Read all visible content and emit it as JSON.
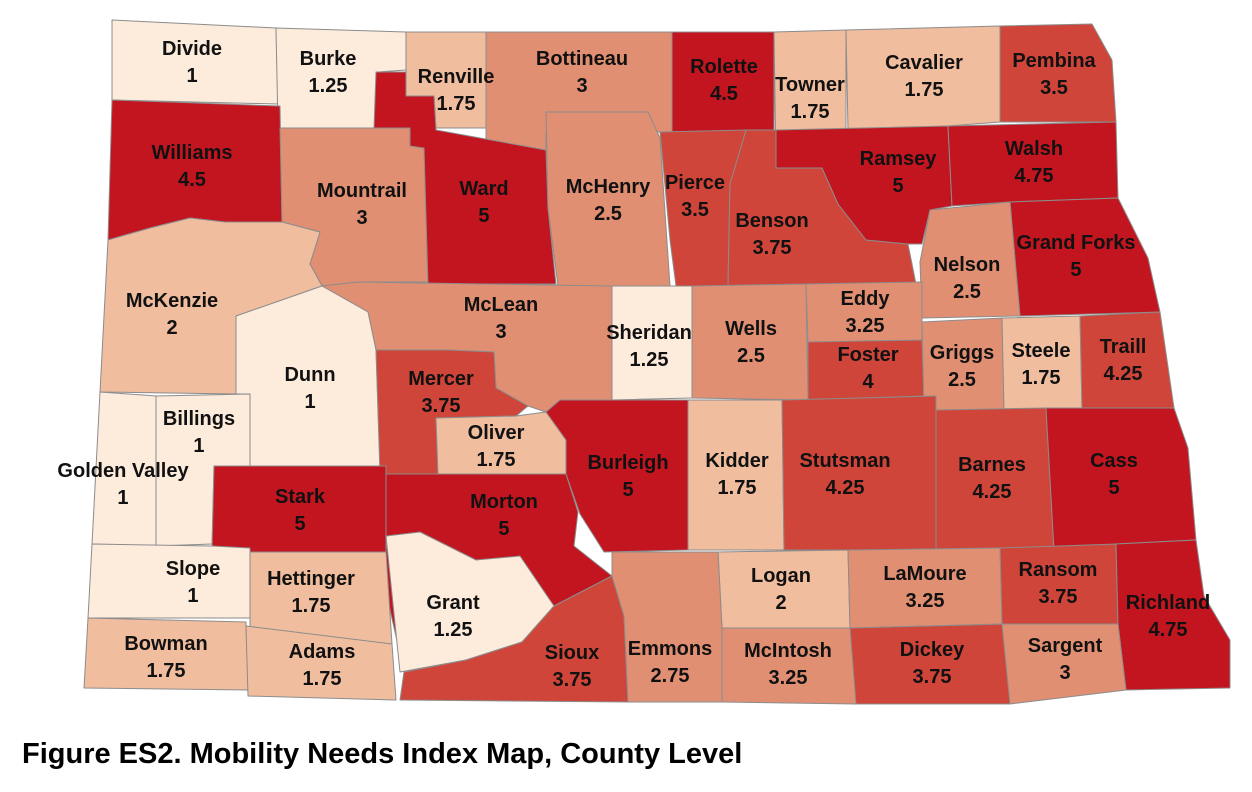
{
  "caption": "Figure ES2. Mobility Needs Index Map, County Level",
  "color_scale": {
    "1": "#fdebdc",
    "1.25": "#fdebdc",
    "1.75": "#f0bd9e",
    "2": "#f0bd9e",
    "2.25": "#e18f72",
    "2.5": "#e18f72",
    "2.75": "#e18f72",
    "3": "#e18f72",
    "3.25": "#e18f72",
    "3.5": "#cf4539",
    "3.75": "#cf4539",
    "4": "#cf4539",
    "4.25": "#cf4539",
    "4.5": "#c21520",
    "4.75": "#c21520",
    "5": "#c21520"
  },
  "counties": [
    {
      "id": "divide",
      "name": "Divide",
      "value": "1"
    },
    {
      "id": "burke",
      "name": "Burke",
      "value": "1.25"
    },
    {
      "id": "renville",
      "name": "Renville",
      "value": "1.75"
    },
    {
      "id": "bottineau",
      "name": "Bottineau",
      "value": "3"
    },
    {
      "id": "rolette",
      "name": "Rolette",
      "value": "4.5"
    },
    {
      "id": "towner",
      "name": "Towner",
      "value": "1.75"
    },
    {
      "id": "cavalier",
      "name": "Cavalier",
      "value": "1.75"
    },
    {
      "id": "pembina",
      "name": "Pembina",
      "value": "3.5"
    },
    {
      "id": "williams",
      "name": "Williams",
      "value": "4.5"
    },
    {
      "id": "mountrail",
      "name": "Mountrail",
      "value": "3"
    },
    {
      "id": "ward",
      "name": "Ward",
      "value": "5"
    },
    {
      "id": "mchenry",
      "name": "McHenry",
      "value": "2.5"
    },
    {
      "id": "pierce",
      "name": "Pierce",
      "value": "3.5"
    },
    {
      "id": "benson",
      "name": "Benson",
      "value": "3.75"
    },
    {
      "id": "ramsey",
      "name": "Ramsey",
      "value": "5"
    },
    {
      "id": "walsh",
      "name": "Walsh",
      "value": "4.75"
    },
    {
      "id": "grand-forks",
      "name": "Grand Forks",
      "value": "5"
    },
    {
      "id": "nelson",
      "name": "Nelson",
      "value": "2.5"
    },
    {
      "id": "mckenzie",
      "name": "McKenzie",
      "value": "2"
    },
    {
      "id": "mclean",
      "name": "McLean",
      "value": "3"
    },
    {
      "id": "sheridan",
      "name": "Sheridan",
      "value": "1.25"
    },
    {
      "id": "wells",
      "name": "Wells",
      "value": "2.5"
    },
    {
      "id": "eddy",
      "name": "Eddy",
      "value": "3.25"
    },
    {
      "id": "foster",
      "name": "Foster",
      "value": "4"
    },
    {
      "id": "griggs",
      "name": "Griggs",
      "value": "2.5"
    },
    {
      "id": "steele",
      "name": "Steele",
      "value": "1.75"
    },
    {
      "id": "traill",
      "name": "Traill",
      "value": "4.25"
    },
    {
      "id": "dunn",
      "name": "Dunn",
      "value": "1"
    },
    {
      "id": "mercer",
      "name": "Mercer",
      "value": "3.75"
    },
    {
      "id": "oliver",
      "name": "Oliver",
      "value": "1.75"
    },
    {
      "id": "billings",
      "name": "Billings",
      "value": "1"
    },
    {
      "id": "golden-valley",
      "name": "Golden Valley",
      "value": "1"
    },
    {
      "id": "stark",
      "name": "Stark",
      "value": "5"
    },
    {
      "id": "morton",
      "name": "Morton",
      "value": "5"
    },
    {
      "id": "burleigh",
      "name": "Burleigh",
      "value": "5"
    },
    {
      "id": "kidder",
      "name": "Kidder",
      "value": "1.75"
    },
    {
      "id": "stutsman",
      "name": "Stutsman",
      "value": "4.25"
    },
    {
      "id": "barnes",
      "name": "Barnes",
      "value": "4.25"
    },
    {
      "id": "cass",
      "name": "Cass",
      "value": "5"
    },
    {
      "id": "slope",
      "name": "Slope",
      "value": "1"
    },
    {
      "id": "hettinger",
      "name": "Hettinger",
      "value": "1.75"
    },
    {
      "id": "grant",
      "name": "Grant",
      "value": "1.25"
    },
    {
      "id": "logan",
      "name": "Logan",
      "value": "2"
    },
    {
      "id": "lamoure",
      "name": "LaMoure",
      "value": "3.25"
    },
    {
      "id": "ransom",
      "name": "Ransom",
      "value": "3.75"
    },
    {
      "id": "richland",
      "name": "Richland",
      "value": "4.75"
    },
    {
      "id": "bowman",
      "name": "Bowman",
      "value": "1.75"
    },
    {
      "id": "adams",
      "name": "Adams",
      "value": "1.75"
    },
    {
      "id": "sioux",
      "name": "Sioux",
      "value": "3.75"
    },
    {
      "id": "emmons",
      "name": "Emmons",
      "value": "2.75"
    },
    {
      "id": "mcintosh",
      "name": "McIntosh",
      "value": "3.25"
    },
    {
      "id": "dickey",
      "name": "Dickey",
      "value": "3.75"
    },
    {
      "id": "sargent",
      "name": "Sargent",
      "value": "3"
    }
  ]
}
